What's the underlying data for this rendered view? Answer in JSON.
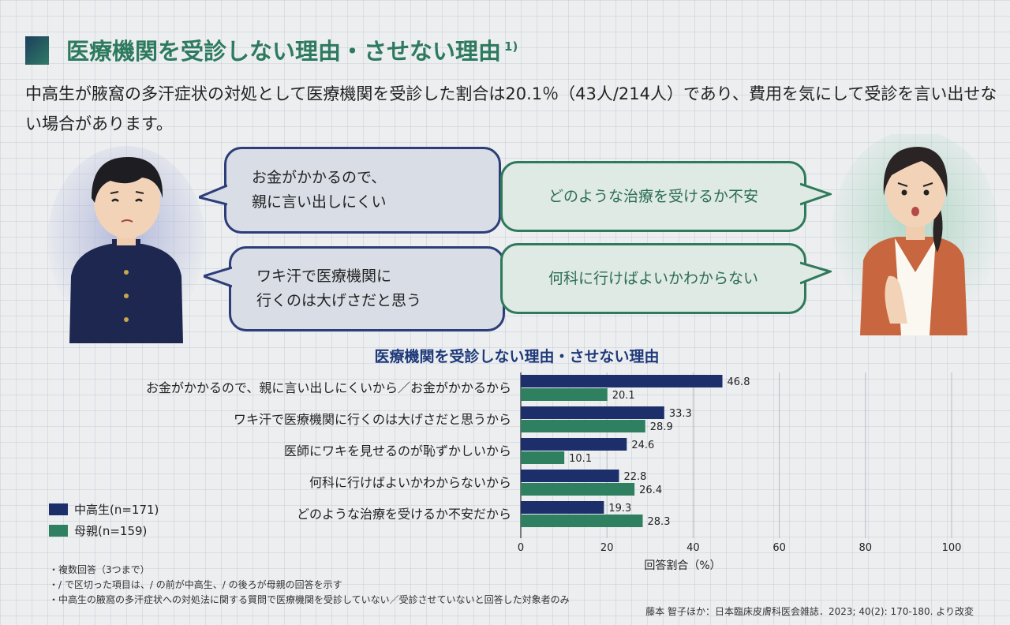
{
  "header": {
    "title": "医療機関を受診しない理由・させない理由",
    "title_ref": "1)",
    "intro": "中高生が腋窩の多汗症状の対処として医療機関を受診した割合は20.1％（43人/214人）であり、費用を気にして受診を言い出せない場合があります。"
  },
  "bubbles": {
    "student_1": "お金がかかるので、\n親に言い出しにくい",
    "student_2": "ワキ汗で医療機関に\n行くのは大げさだと思う",
    "mother_1": "どのような治療を受けるか不安",
    "mother_2": "何科に行けばよいかわからない"
  },
  "colors": {
    "student": "#1c2f6b",
    "mother": "#2f8060",
    "title_green": "#2e7a5f",
    "chart_title_navy": "#1f3a7a"
  },
  "chart_data": {
    "type": "bar",
    "orientation": "horizontal",
    "title": "医療機関を受診しない理由・させない理由",
    "categories": [
      "お金がかかるので、親に言い出しにくいから／お金がかかるから",
      "ワキ汗で医療機関に行くのは大げさだと思うから",
      "医師にワキを見せるのが恥ずかしいから",
      "何科に行けばよいかわからないから",
      "どのような治療を受けるか不安だから"
    ],
    "series": [
      {
        "name": "中高生(n=171)",
        "values": [
          46.8,
          33.3,
          24.6,
          22.8,
          19.3
        ],
        "color": "#1c2f6b"
      },
      {
        "name": "母親(n=159)",
        "values": [
          20.1,
          28.9,
          10.1,
          26.4,
          28.3
        ],
        "color": "#2f8060"
      }
    ],
    "xlabel": "回答割合（%）",
    "xlim": [
      0,
      100
    ],
    "xticks": [
      "0",
      "20",
      "40",
      "60",
      "80",
      "100"
    ],
    "grid": true,
    "legend": "bottom-left"
  },
  "notes": [
    "・複数回答（3つまで）",
    "・/ で区切った項目は、/ の前が中高生、/ の後ろが母親の回答を示す",
    "・中高生の腋窩の多汗症状への対処法に関する質問で医療機関を受診していない／受診させていないと回答した対象者のみ"
  ],
  "citation": "藤本 智子ほか：日本臨床皮膚科医会雑誌．2023; 40(2): 170-180. より改変"
}
